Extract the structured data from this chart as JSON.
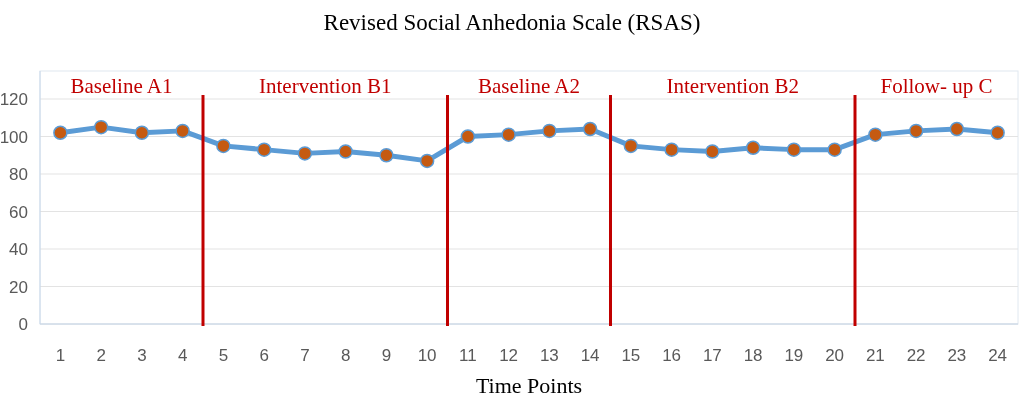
{
  "chart_data": {
    "type": "line",
    "title": "Revised Social Anhedonia Scale (RSAS)",
    "xlabel": "Time Points",
    "x": [
      1,
      2,
      3,
      4,
      5,
      6,
      7,
      8,
      9,
      10,
      11,
      12,
      13,
      14,
      15,
      16,
      17,
      18,
      19,
      20,
      21,
      22,
      23,
      24
    ],
    "series": [
      {
        "color": "#5b9bd5",
        "values": [
          102,
          105,
          102,
          103,
          95,
          93,
          91,
          92,
          90,
          87,
          100,
          101,
          103,
          104,
          95,
          93,
          92,
          94,
          93,
          93,
          101,
          103,
          104,
          102
        ]
      }
    ],
    "xlim": [
      0.5,
      24.5
    ],
    "xticks": [
      1,
      2,
      3,
      4,
      5,
      6,
      7,
      8,
      9,
      10,
      11,
      12,
      13,
      14,
      15,
      16,
      17,
      18,
      19,
      20,
      21,
      22,
      23,
      24
    ],
    "ylim": [
      0,
      120
    ],
    "yticks": [
      0,
      20,
      40,
      60,
      80,
      100,
      120
    ],
    "grid": "y",
    "marker": "circle",
    "line_style": "solid",
    "ref_lines": [
      {
        "axis": "x",
        "value": 4.5,
        "color": "#c00000"
      },
      {
        "axis": "x",
        "value": 10.5,
        "color": "#c00000"
      },
      {
        "axis": "x",
        "value": 14.5,
        "color": "#c00000"
      },
      {
        "axis": "x",
        "value": 20.5,
        "color": "#c00000"
      }
    ],
    "annotations": [
      "Baseline A1",
      "Intervention B1",
      "Baseline A2",
      "Intervention B2",
      "Follow- up C"
    ]
  }
}
